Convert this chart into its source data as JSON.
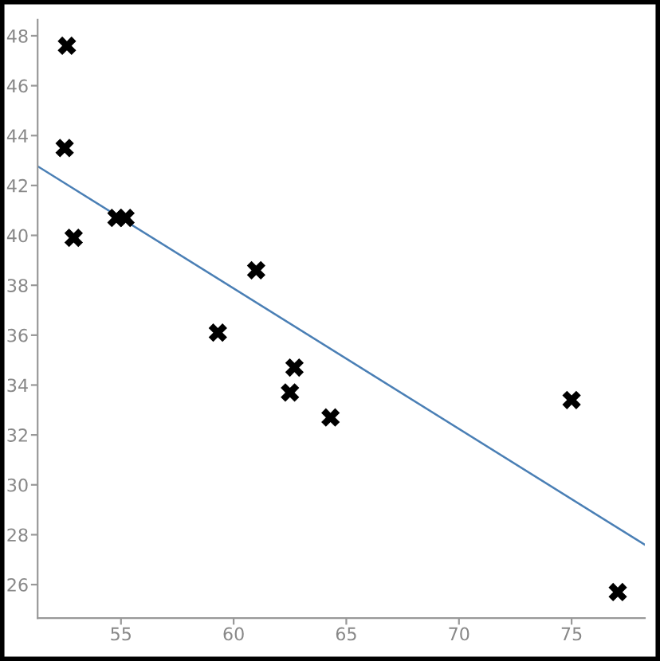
{
  "chart_data": {
    "type": "scatter",
    "grid": false,
    "legend": false,
    "xlim": [
      51.3,
      78.25
    ],
    "ylim": [
      24.66,
      48.64
    ],
    "xticks": [
      55,
      60,
      65,
      70,
      75
    ],
    "yticks": [
      26,
      28,
      30,
      32,
      34,
      36,
      38,
      40,
      42,
      44,
      46,
      48
    ],
    "series": [
      {
        "marker": "cross",
        "color": "#000000",
        "x": [
          52.6,
          52.5,
          52.9,
          54.8,
          55.2,
          61.0,
          59.3,
          62.7,
          62.5,
          64.3,
          75.0,
          77.05
        ],
        "values": [
          47.6,
          43.5,
          39.9,
          40.7,
          40.7,
          38.6,
          36.1,
          34.7,
          33.7,
          32.7,
          33.4,
          25.7
        ]
      },
      {
        "type": "line",
        "marker": "none",
        "color": "#4a7fb5",
        "x": [
          51.3,
          78.25
        ],
        "values": [
          42.77,
          27.6
        ]
      }
    ]
  }
}
